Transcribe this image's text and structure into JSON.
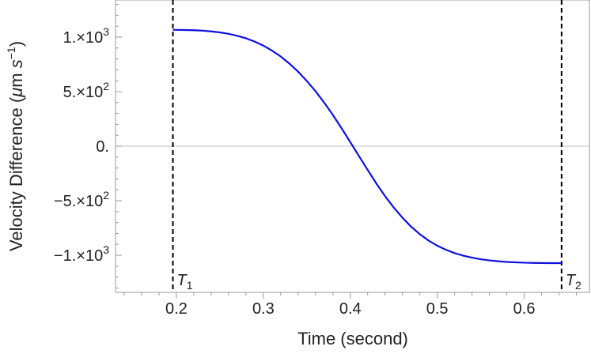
{
  "chart_data": {
    "type": "line",
    "title": "",
    "xlabel": "Time (second)",
    "ylabel_parts": {
      "main": "Velocity Difference (",
      "mu": "μ",
      "unit_m": "m ",
      "unit_s": "s",
      "exp": "−1",
      "close": ")"
    },
    "xlim": [
      0.13,
      0.675
    ],
    "ylim": [
      -1340,
      1340
    ],
    "x_ticks": [
      {
        "value": 0.2,
        "label": "0.2"
      },
      {
        "value": 0.3,
        "label": "0.3"
      },
      {
        "value": 0.4,
        "label": "0.4"
      },
      {
        "value": 0.5,
        "label": "0.5"
      },
      {
        "value": 0.6,
        "label": "0.6"
      }
    ],
    "x_minor_step": 0.02,
    "y_ticks": [
      {
        "value": 1000,
        "mant": "1.×10",
        "exp": "3"
      },
      {
        "value": 500,
        "mant": "5.×10",
        "exp": "2"
      },
      {
        "value": 0,
        "mant": "0.",
        "exp": ""
      },
      {
        "value": -500,
        "mant": "−5.×10",
        "exp": "2"
      },
      {
        "value": -1000,
        "mant": "−1.×10",
        "exp": "3"
      }
    ],
    "y_minor_step": 100,
    "zero_line": true,
    "series": [
      {
        "color": "#1010e0",
        "x": [
          0.196,
          0.2,
          0.21,
          0.22,
          0.23,
          0.24,
          0.25,
          0.26,
          0.27,
          0.28,
          0.29,
          0.3,
          0.31,
          0.32,
          0.33,
          0.34,
          0.35,
          0.36,
          0.37,
          0.38,
          0.39,
          0.4,
          0.41,
          0.42,
          0.43,
          0.44,
          0.45,
          0.46,
          0.47,
          0.48,
          0.49,
          0.5,
          0.51,
          0.52,
          0.53,
          0.54,
          0.55,
          0.56,
          0.57,
          0.58,
          0.59,
          0.6,
          0.61,
          0.62,
          0.63,
          0.643
        ],
        "y": [
          1067,
          1066,
          1065,
          1063,
          1059,
          1052,
          1043,
          1030,
          1012,
          989,
          959,
          922,
          876,
          822,
          757,
          683,
          598,
          504,
          399,
          286,
          164,
          37,
          -91,
          -218,
          -342,
          -458,
          -563,
          -656,
          -738,
          -807,
          -865,
          -912,
          -950,
          -980,
          -1004,
          -1022,
          -1036,
          -1047,
          -1055,
          -1061,
          -1065,
          -1068,
          -1070,
          -1071,
          -1072,
          -1072
        ]
      }
    ],
    "markers": [
      {
        "x": 0.196,
        "label": "T",
        "sub": "1"
      },
      {
        "x": 0.643,
        "label": "T",
        "sub": "2"
      }
    ]
  }
}
